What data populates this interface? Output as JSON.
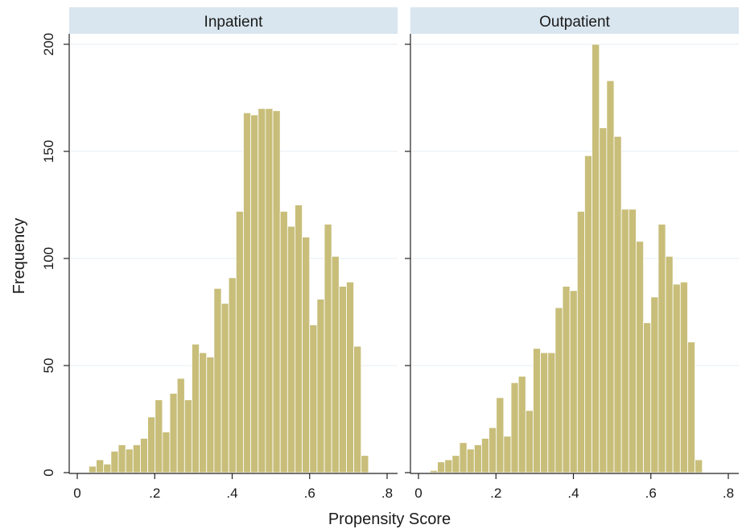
{
  "chart_data": {
    "type": "bar",
    "ylabel": "Frequency",
    "xlabel": "Propensity Score",
    "xlim": [
      0,
      0.8
    ],
    "ylim": [
      0,
      200
    ],
    "x_ticks": [
      0,
      0.2,
      0.4,
      0.6,
      0.8
    ],
    "x_tick_labels": [
      "0",
      ".2",
      ".4",
      ".6",
      ".8"
    ],
    "y_ticks": [
      0,
      50,
      100,
      150,
      200
    ],
    "y_tick_labels": [
      "0",
      "50",
      "100",
      "150",
      "200"
    ],
    "grid": "horizontal",
    "bar_color": "#c8be7a",
    "bar_edge_color": "#ffffff",
    "strip_color": "#d9e6ef",
    "bin_width": 0.019,
    "panels": [
      {
        "title": "Inpatient",
        "bin_start": 0.03,
        "values": [
          3,
          6,
          4,
          10,
          13,
          11,
          13,
          16,
          26,
          34,
          19,
          37,
          44,
          34,
          60,
          56,
          54,
          86,
          79,
          91,
          122,
          168,
          167,
          170,
          170,
          169,
          122,
          115,
          125,
          110,
          69,
          81,
          116,
          101,
          87,
          89,
          59,
          8
        ]
      },
      {
        "title": "Outpatient",
        "bin_start": 0.03,
        "values": [
          1,
          5,
          6,
          8,
          14,
          11,
          13,
          16,
          21,
          35,
          17,
          42,
          45,
          29,
          58,
          56,
          56,
          77,
          87,
          85,
          122,
          148,
          200,
          161,
          183,
          157,
          123,
          123,
          108,
          70,
          82,
          116,
          101,
          88,
          89,
          61,
          6
        ]
      }
    ]
  }
}
